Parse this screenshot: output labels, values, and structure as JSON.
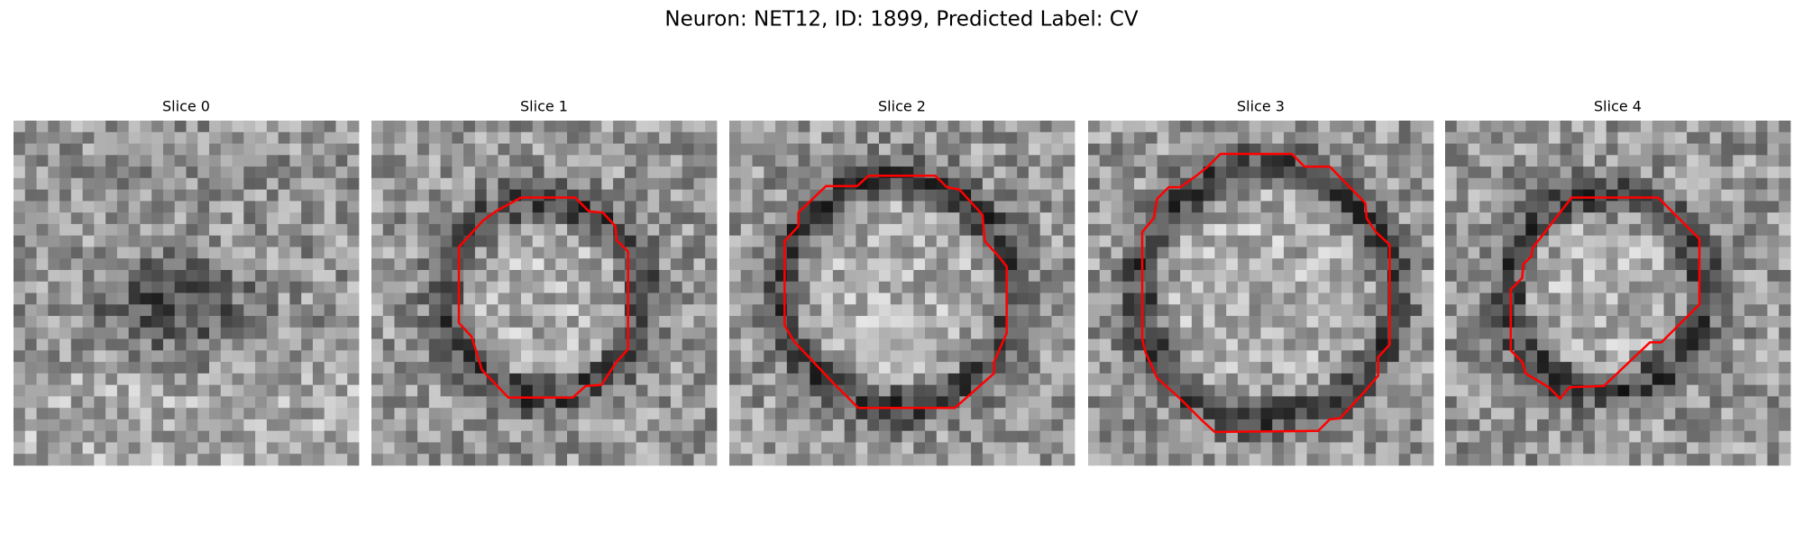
{
  "title": "Neuron: NET12, ID: 1899, Predicted Label: CV",
  "panels": [
    {
      "title": "Slice 0"
    },
    {
      "title": "Slice 1"
    },
    {
      "title": "Slice 2"
    },
    {
      "title": "Slice 3"
    },
    {
      "title": "Slice 4"
    }
  ]
}
